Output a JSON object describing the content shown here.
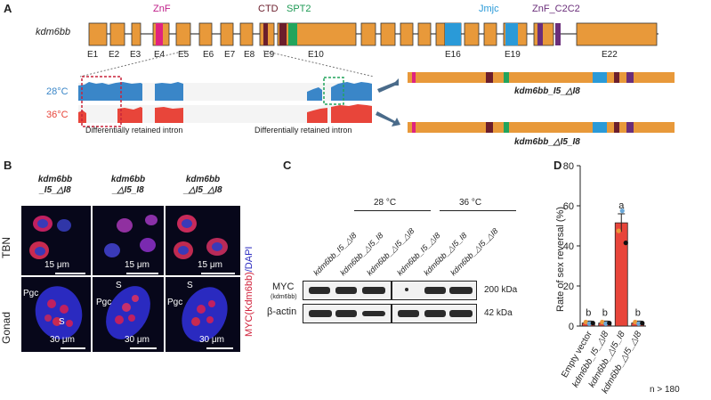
{
  "panels": [
    "A",
    "B",
    "C",
    "D"
  ],
  "panelA": {
    "gene": "kdm6bb",
    "domains": {
      "znf": "ZnF",
      "ctd": "CTD",
      "spt2": "SPT2",
      "jmjc": "Jmjc",
      "znf_c2c2": "ZnF_C2C2"
    },
    "exons": [
      "E1",
      "E2",
      "E3",
      "E4",
      "E5",
      "E6",
      "E7",
      "E8",
      "E9",
      "E10",
      "E16",
      "E19",
      "E22"
    ],
    "temps": {
      "t28": "28°C",
      "t36": "36°C"
    },
    "intron_label": "Differentially retained intron",
    "isoforms": {
      "iso1": "kdm6bb_I5_△I8",
      "iso2": "kdm6bb_△I5_I8"
    },
    "colors": {
      "exon": "#E8993A",
      "znf": "#E0237F",
      "ctd": "#6B1E2C",
      "spt2": "#22A45C",
      "jmjc": "#2A9AD8",
      "c2c2": "#6A2E7A",
      "cov28": "#3A86C8",
      "cov36": "#E8453A"
    }
  },
  "panelB": {
    "columns": [
      "kdm6bb\n_I5_△I8",
      "kdm6bb\n_△I5_I8",
      "kdm6bb\n_△I5_△I8"
    ],
    "rows": {
      "tbn": "TBN",
      "gonad": "Gonad"
    },
    "scale_tbn": "15 μm",
    "scale_gonad": "30 μm",
    "pgc": "Pgc",
    "s": "S",
    "stain_myc": "MYC(Kdm6bb)",
    "stain_dapi": "/DAPI"
  },
  "panelC": {
    "temps": [
      "28 °C",
      "36 °C"
    ],
    "lanes": [
      "kdm6bb_I5_△I8",
      "kdm6bb_△I5_I8",
      "kdm6bb_△I5_△I8",
      "kdm6bb_I5_△I8",
      "kdm6bb_△I5_I8",
      "kdm6bb_△I5_△I8"
    ],
    "myc_label": "MYC",
    "myc_sub": "(kdm6bb)",
    "actin_label": "β-actin",
    "kda_200": "200 kDa",
    "kda_42": "42 kDa"
  },
  "panelD": {
    "chart_data": {
      "type": "bar",
      "categories": [
        "Empty vector",
        "kdm6bb_I5_△I8",
        "kdm6bb_△I5_I8",
        "kdm6bb_△I5_△I8"
      ],
      "values": [
        1.5,
        1.5,
        51.5,
        1.5
      ],
      "errors": [
        1.0,
        1.0,
        4.5,
        1.0
      ],
      "sig_letters": [
        "b",
        "b",
        "a",
        "b"
      ],
      "ylabel": "Rate of sex reversal (%)",
      "ylim": [
        0,
        80
      ],
      "yticks": [
        0,
        20,
        40,
        60,
        80
      ],
      "bar_colors": [
        "#E8453A"
      ],
      "note": "n > 180"
    }
  }
}
